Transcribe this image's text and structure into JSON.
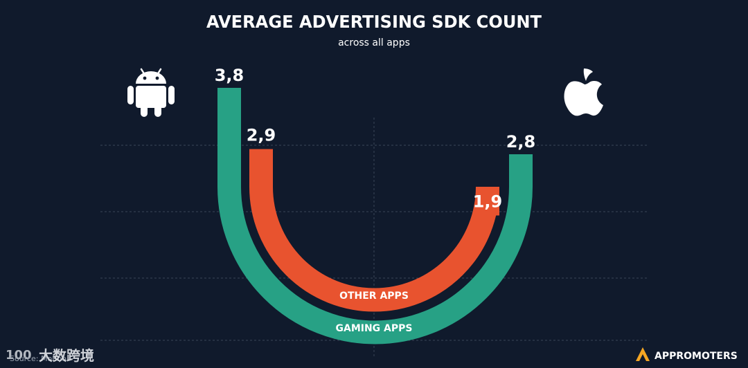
{
  "chart_data": {
    "type": "bar",
    "title": "AVERAGE ADVERTISING SDK COUNT",
    "subtitle": "across all apps",
    "categories": [
      "Android",
      "iOS"
    ],
    "series": [
      {
        "name": "GAMING APPS",
        "values": [
          3.8,
          2.8
        ],
        "labels": [
          "3,8",
          "2,8"
        ],
        "color": "#27a185"
      },
      {
        "name": "OTHER APPS",
        "values": [
          2.9,
          1.9
        ],
        "labels": [
          "2,9",
          "1,9"
        ],
        "color": "#e8532f"
      }
    ],
    "ylim": [
      0,
      3.8
    ],
    "grid": true
  },
  "icons": {
    "left": "android-icon",
    "right": "apple-icon"
  },
  "footer": {
    "source": "Source: Mobbo",
    "watermark_logo": "100",
    "watermark_text": "大数跨境",
    "brand": "APPROMOTERS",
    "brand_color": "#f5a623"
  },
  "colors": {
    "background": "#101a2c",
    "text": "#ffffff",
    "grid": "#3a4558"
  }
}
